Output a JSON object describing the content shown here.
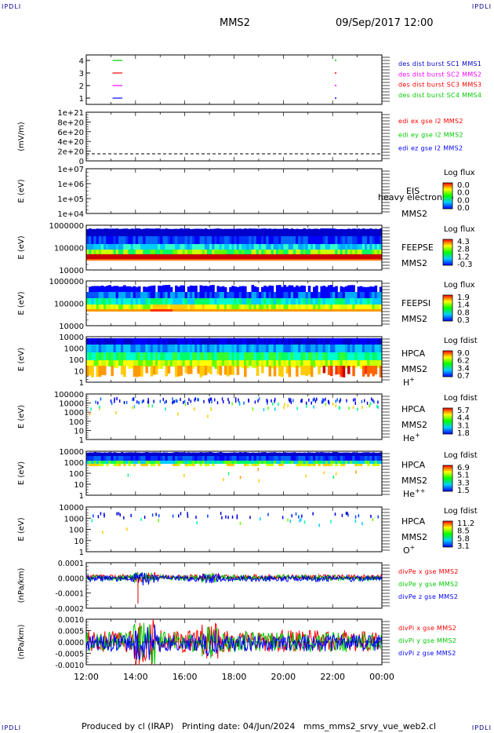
{
  "header": {
    "corner_tl": "IPDLI",
    "corner_tr": "IPDLI",
    "corner_bl": "IPDLI",
    "corner_br": "IPDLI",
    "spacecraft": "MMS2",
    "datetime": "09/Sep/2017 12:00"
  },
  "footer": "Produced by cl (IRAP)   Printing date: 04/Jun/2024   mms_mms2_srvy_vue_web2.cl",
  "colors": {
    "red": "#ff0000",
    "green": "#00cc00",
    "blue": "#0000ff",
    "magenta": "#ff00ff",
    "navy": "#00008b"
  },
  "chart_data": [
    {
      "panel": "burst",
      "type": "line",
      "yticks": [
        "4",
        "3",
        "2",
        "1"
      ],
      "legend": [
        {
          "label": "des dist burst SC1 MMS1",
          "color": "#0000cd"
        },
        {
          "label": "des dist burst SC2 MMS2",
          "color": "#ff00ff"
        },
        {
          "label": "des dist burst SC3 MMS3",
          "color": "#ff0000"
        },
        {
          "label": "des dist burst SC4 MMS4",
          "color": "#00cc00"
        }
      ],
      "series": [
        {
          "level": 4,
          "color": "#00cc00",
          "x": [
            "13:04",
            "13:28"
          ]
        },
        {
          "level": 3,
          "color": "#ff0000",
          "x": [
            "13:04",
            "13:28"
          ]
        },
        {
          "level": 2,
          "color": "#ff00ff",
          "x": [
            "13:04",
            "13:28"
          ]
        },
        {
          "level": 1,
          "color": "#0000ff",
          "x": [
            "13:04",
            "13:28"
          ]
        }
      ]
    },
    {
      "panel": "edi",
      "type": "line",
      "ylabel": "(mV/m)",
      "yticks": [
        "1e+21",
        "8e+20",
        "6e+20",
        "4e+20",
        "2e+20",
        "0"
      ],
      "ylim": [
        0,
        1e+21
      ],
      "legend": [
        {
          "label": "edi ex gse l2 MMS2",
          "color": "#ff0000"
        },
        {
          "label": "edi ey gse l2 MMS2",
          "color": "#00cc00"
        },
        {
          "label": "edi ez gse l2 MMS2",
          "color": "#0000ff"
        }
      ]
    },
    {
      "panel": "eis",
      "type": "heatmap",
      "ylabel": "E (eV)",
      "yticks": [
        "1e+07",
        "1e+06",
        "1e+05",
        "1e+04"
      ],
      "ylog": true,
      "instrument": "EIS",
      "overlay_text": "heavy electron to",
      "spacecraft": "MMS2",
      "colorbar_title": "Log flux",
      "colorbar_ticks": [
        "0.0",
        "0.0",
        "0.0",
        "0.0"
      ]
    },
    {
      "panel": "feeps_e",
      "type": "heatmap",
      "ylabel": "E (eV)",
      "yticks": [
        "1000000",
        "100000",
        "10000"
      ],
      "ylog": true,
      "instrument": "FEEPSE",
      "spacecraft": "MMS2",
      "colorbar_title": "Log flux",
      "colorbar_ticks": [
        "4.3",
        "2.8",
        "1.2",
        "-0.3"
      ]
    },
    {
      "panel": "feeps_i",
      "type": "heatmap",
      "ylabel": "E (eV)",
      "yticks": [
        "1000000",
        "100000",
        "10000"
      ],
      "ylog": true,
      "instrument": "FEEPSI",
      "spacecraft": "MMS2",
      "colorbar_title": "Log flux",
      "colorbar_ticks": [
        "1.9",
        "1.4",
        "0.8",
        "0.3"
      ]
    },
    {
      "panel": "hpca_h",
      "type": "heatmap",
      "ylabel": "E (eV)",
      "yticks": [
        "10000",
        "1000",
        "100",
        "10",
        "1"
      ],
      "ylog": true,
      "instrument": "HPCA",
      "spacecraft": "MMS2",
      "species": "H",
      "species_sup": "+",
      "colorbar_title": "Log fdist",
      "colorbar_ticks": [
        "9.0",
        "6.2",
        "3.4",
        "0.7"
      ]
    },
    {
      "panel": "hpca_he1",
      "type": "heatmap",
      "ylabel": "E (eV)",
      "yticks": [
        "100000",
        "10000",
        "1000",
        "100",
        "10",
        "1"
      ],
      "ylog": true,
      "instrument": "HPCA",
      "spacecraft": "MMS2",
      "species": "He",
      "species_sup": "+",
      "colorbar_title": "Log fdist",
      "colorbar_ticks": [
        "5.7",
        "4.4",
        "3.1",
        "1.8"
      ]
    },
    {
      "panel": "hpca_he2",
      "type": "heatmap",
      "ylabel": "E (eV)",
      "yticks": [
        "10000",
        "1000",
        "100",
        "10",
        "1"
      ],
      "ylog": true,
      "instrument": "HPCA",
      "spacecraft": "MMS2",
      "species": "He",
      "species_sup": "++",
      "colorbar_title": "Log fdist",
      "colorbar_ticks": [
        "6.9",
        "5.1",
        "3.3",
        "1.5"
      ]
    },
    {
      "panel": "hpca_o",
      "type": "heatmap",
      "ylabel": "E (eV)",
      "yticks": [
        "10000",
        "1000",
        "100",
        "10",
        "1"
      ],
      "ylog": true,
      "instrument": "HPCA",
      "spacecraft": "MMS2",
      "species": "O",
      "species_sup": "+",
      "colorbar_title": "Log fdist",
      "colorbar_ticks": [
        "11.2",
        "8.5",
        "5.8",
        "3.1"
      ]
    },
    {
      "panel": "divpe",
      "type": "line",
      "ylabel": "(nPa/km)",
      "yticks": [
        "0.0001",
        "0.0000",
        "-0.0001",
        "-0.0002"
      ],
      "ylim": [
        -0.00025,
        0.00013
      ],
      "legend": [
        {
          "label": "divPe x gse MMS2",
          "color": "#ff0000"
        },
        {
          "label": "divPe y gse MMS2",
          "color": "#00cc00"
        },
        {
          "label": "divPe z gse MMS2",
          "color": "#0000ff"
        }
      ]
    },
    {
      "panel": "divpi",
      "type": "line",
      "ylabel": "(nPa/km)",
      "yticks": [
        "0.0010",
        "0.0005",
        "0.0000",
        "-0.0005",
        "-0.0010"
      ],
      "ylim": [
        -0.0012,
        0.0013
      ],
      "legend": [
        {
          "label": "divPi x gse MMS2",
          "color": "#ff0000"
        },
        {
          "label": "divPi y gse MMS2",
          "color": "#00cc00"
        },
        {
          "label": "divPi z gse MMS2",
          "color": "#0000ff"
        }
      ]
    }
  ],
  "xaxis": {
    "ticks": [
      "12:00",
      "14:00",
      "16:00",
      "18:00",
      "20:00",
      "22:00",
      "00:00"
    ],
    "range_hours": [
      12,
      24
    ]
  }
}
